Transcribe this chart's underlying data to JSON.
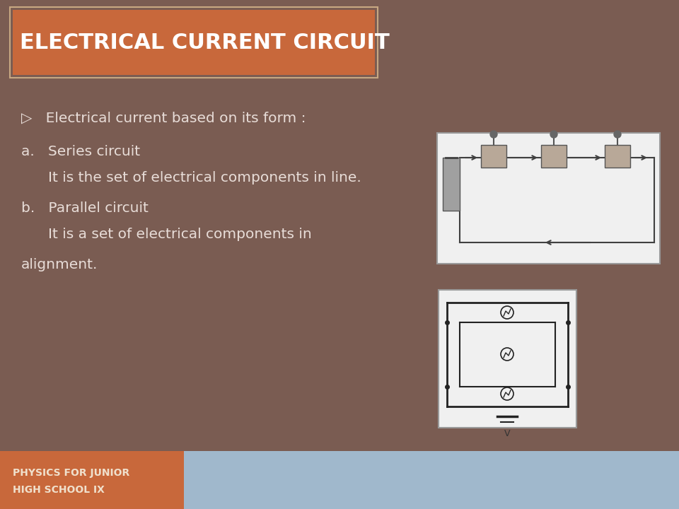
{
  "bg_color": "#7a5c52",
  "title_text": "ELECTRICAL CURRENT CIRCUIT",
  "title_bg_color": "#c8683b",
  "title_text_color": "#ffffff",
  "title_border_color": "#c8a882",
  "body_text_color": "#e8ddd8",
  "footer_bg_color": "#c8683b",
  "footer_right_color": "#a0b8cc",
  "footer_text_line1": "PHYSICS FOR JUNIOR",
  "footer_text_line2": "HIGH SCHOOL IX",
  "footer_text_color": "#f0e0cc",
  "title_font_size": 22,
  "body_font_size": 14.5
}
